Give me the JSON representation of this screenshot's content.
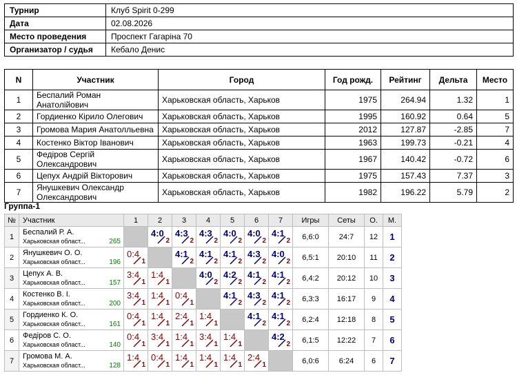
{
  "info": [
    {
      "key": "Турнир",
      "value": "Клуб Spirit 0-299"
    },
    {
      "key": "Дата",
      "value": "02.08.2026"
    },
    {
      "key": "Место проведения",
      "value": "Проспект Гагаріна 70"
    },
    {
      "key": "Организатор / судья",
      "value": "Кебало Денис"
    }
  ],
  "players_headers": [
    "N",
    "Участник",
    "Город",
    "Год рожд.",
    "Рейтинг",
    "Дельта",
    "Место"
  ],
  "players": [
    {
      "n": "1",
      "name": "Беспалий Роман Анатолійович",
      "city": "Харьковская область, Харьков",
      "year": "1975",
      "rating": "264.94",
      "delta": "1.32",
      "place": "1"
    },
    {
      "n": "2",
      "name": "Гордиенко Кірило Олегович",
      "city": "Харьковская область, Харьков",
      "year": "1995",
      "rating": "160.92",
      "delta": "0.64",
      "place": "5"
    },
    {
      "n": "3",
      "name": "Громова Мария Анатолльевна",
      "city": "Харьковская область, Харьков",
      "year": "2012",
      "rating": "127.87",
      "delta": "-2.85",
      "place": "7"
    },
    {
      "n": "4",
      "name": "Костенко Віктор Іванович",
      "city": "Харьковская область, Харьков",
      "year": "1963",
      "rating": "199.73",
      "delta": "-0.21",
      "place": "4"
    },
    {
      "n": "5",
      "name": "Федіров Сергій Олександрович",
      "city": "Харьковская область, Харьков",
      "year": "1967",
      "rating": "140.42",
      "delta": "-0.72",
      "place": "6"
    },
    {
      "n": "6",
      "name": "Цепух Андрій Вікторович",
      "city": "Харьковская область, Харьков",
      "year": "1975",
      "rating": "157.43",
      "delta": "7.37",
      "place": "3"
    },
    {
      "n": "7",
      "name": "Янушкевич Олександр Олександрович",
      "city": "Харьковская область, Харьков",
      "year": "1982",
      "rating": "196.22",
      "delta": "5.79",
      "place": "2"
    }
  ],
  "group_title": "Группа-1",
  "group_headers": [
    "№",
    "Участник",
    "1",
    "2",
    "3",
    "4",
    "5",
    "6",
    "7",
    "Игры",
    "Сеты",
    "О.",
    "М."
  ],
  "group_rows": [
    {
      "n": "1",
      "name": "Беспалий Р. А.",
      "city": "Харьковская област...",
      "rating": "265",
      "results": [
        null,
        "4:0",
        "4:3",
        "4:3",
        "4:0",
        "4:0",
        "4:1"
      ],
      "points": [
        null,
        "2",
        "2",
        "2",
        "2",
        "2",
        "2"
      ],
      "games": "6,6:0",
      "sets": "24:7",
      "score": "12",
      "place": "1"
    },
    {
      "n": "2",
      "name": "Янушкевич О. О.",
      "city": "Харьковская област...",
      "rating": "196",
      "results": [
        "0:4",
        null,
        "4:1",
        "4:1",
        "4:1",
        "4:3",
        "4:0"
      ],
      "points": [
        "1",
        null,
        "2",
        "2",
        "2",
        "2",
        "2"
      ],
      "games": "6,5:1",
      "sets": "20:10",
      "score": "11",
      "place": "2"
    },
    {
      "n": "3",
      "name": "Цепух А. В.",
      "city": "Харьковская област...",
      "rating": "157",
      "results": [
        "3:4",
        "1:4",
        null,
        "4:0",
        "4:2",
        "4:1",
        "4:1"
      ],
      "points": [
        "1",
        "1",
        null,
        "2",
        "2",
        "2",
        "2"
      ],
      "games": "6,4:2",
      "sets": "20:12",
      "score": "10",
      "place": "3"
    },
    {
      "n": "4",
      "name": "Костенко В. І.",
      "city": "Харьковская област...",
      "rating": "200",
      "results": [
        "3:4",
        "1:4",
        "0:4",
        null,
        "4:1",
        "4:3",
        "4:1"
      ],
      "points": [
        "1",
        "1",
        "1",
        null,
        "2",
        "2",
        "2"
      ],
      "games": "6,3:3",
      "sets": "16:17",
      "score": "9",
      "place": "4"
    },
    {
      "n": "5",
      "name": "Гордиенко К. О.",
      "city": "Харьковская област...",
      "rating": "161",
      "results": [
        "0:4",
        "1:4",
        "2:4",
        "1:4",
        null,
        "4:1",
        "4:1"
      ],
      "points": [
        "1",
        "1",
        "1",
        "1",
        null,
        "2",
        "2"
      ],
      "games": "6,2:4",
      "sets": "12:18",
      "score": "8",
      "place": "5"
    },
    {
      "n": "6",
      "name": "Федіров С. О.",
      "city": "Харьковская област...",
      "rating": "140",
      "results": [
        "0:4",
        "3:4",
        "1:4",
        "3:4",
        "1:4",
        null,
        "4:2"
      ],
      "points": [
        "1",
        "1",
        "1",
        "1",
        "1",
        null,
        "2"
      ],
      "games": "6,1:5",
      "sets": "12:22",
      "score": "7",
      "place": "6"
    },
    {
      "n": "7",
      "name": "Громова М. А.",
      "city": "Харьковская област...",
      "rating": "128",
      "results": [
        "1:4",
        "0:4",
        "1:4",
        "1:4",
        "1:4",
        "2:4",
        null
      ],
      "points": [
        "1",
        "1",
        "1",
        "1",
        "1",
        "1",
        null
      ],
      "games": "6,0:6",
      "sets": "6:24",
      "score": "6",
      "place": "7"
    }
  ]
}
